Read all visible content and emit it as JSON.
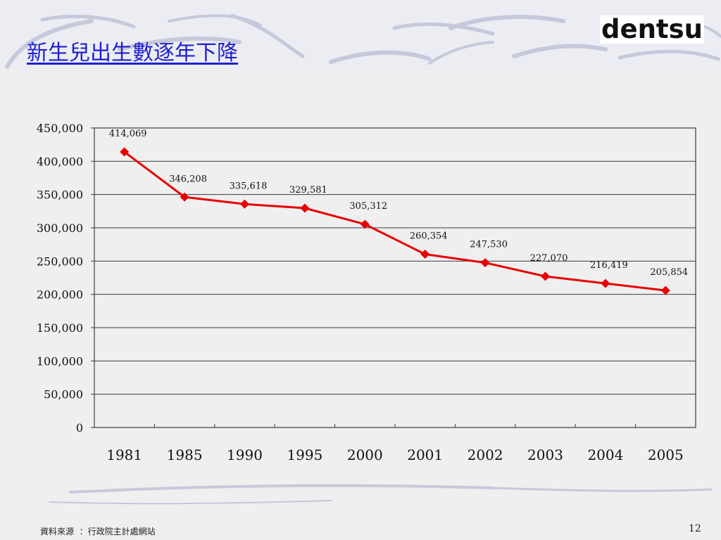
{
  "slide": {
    "title": "新生兒出生數逐年下降",
    "logo": "dentsu",
    "source": "資料來源  ：行政院主計處網站",
    "page_number": "12"
  },
  "colors": {
    "title": "#1f1fcf",
    "series_line": "#e80000",
    "grid": "#3a3a4a",
    "header_band": "#ecedf3"
  },
  "chart_data": {
    "type": "line",
    "title": "",
    "xlabel": "",
    "ylabel": "",
    "categories": [
      "1981",
      "1985",
      "1990",
      "1995",
      "2000",
      "2001",
      "2002",
      "2003",
      "2004",
      "2005"
    ],
    "series": [
      {
        "values": [
          414069,
          346208,
          335618,
          329581,
          305312,
          260354,
          247530,
          227070,
          216419,
          205854
        ],
        "value_labels": [
          "414,069",
          "346,208",
          "335,618",
          "329,581",
          "305,312",
          "260,354",
          "247,530",
          "227,070",
          "216,419",
          "205,854"
        ],
        "marker": "diamond"
      }
    ],
    "ylim": [
      0,
      450000
    ],
    "yticks": [
      0,
      50000,
      100000,
      150000,
      200000,
      250000,
      300000,
      350000,
      400000,
      450000
    ],
    "ytick_labels": [
      "0",
      "50,000",
      "100,000",
      "150,000",
      "200,000",
      "250,000",
      "300,000",
      "350,000",
      "400,000",
      "450,000"
    ],
    "grid": true,
    "legend": "none"
  }
}
